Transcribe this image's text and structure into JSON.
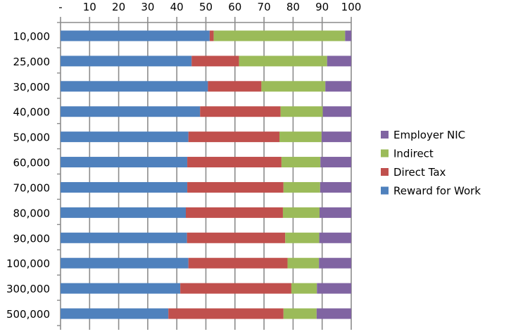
{
  "chart_data": {
    "type": "bar",
    "orientation": "horizontal",
    "stacked": true,
    "categories": [
      "10,000",
      "25,000",
      "30,000",
      "40,000",
      "50,000",
      "60,000",
      "70,000",
      "80,000",
      "90,000",
      "100,000",
      "300,000",
      "500,000"
    ],
    "series": [
      {
        "name": "Reward for Work",
        "color": "#4f81bd",
        "values": [
          51.3,
          45.1,
          50.7,
          48.0,
          44.0,
          43.6,
          43.6,
          43.1,
          43.5,
          44.0,
          41.2,
          37.1
        ]
      },
      {
        "name": "Direct Tax",
        "color": "#c0504d",
        "values": [
          1.4,
          16.3,
          18.4,
          27.7,
          31.3,
          32.4,
          33.1,
          33.4,
          33.8,
          34.1,
          38.2,
          39.6
        ]
      },
      {
        "name": "Indirect",
        "color": "#9bbb59",
        "values": [
          45.2,
          30.3,
          22.0,
          14.5,
          14.5,
          13.4,
          12.6,
          12.6,
          11.7,
          10.8,
          8.8,
          11.4
        ]
      },
      {
        "name": "Employer NIC",
        "color": "#8064a2",
        "values": [
          2.1,
          8.3,
          8.9,
          9.8,
          10.2,
          10.6,
          10.7,
          10.9,
          11.0,
          11.1,
          11.8,
          11.9
        ]
      }
    ],
    "xlim": [
      0,
      100
    ],
    "x_ticks": [
      "-",
      "10",
      "20",
      "30",
      "40",
      "50",
      "60",
      "70",
      "80",
      "90",
      "100"
    ],
    "x_axis_position": "top",
    "grid": "vertical",
    "legend_position": "right",
    "legend_order": [
      "Employer NIC",
      "Indirect",
      "Direct Tax",
      "Reward for Work"
    ]
  }
}
